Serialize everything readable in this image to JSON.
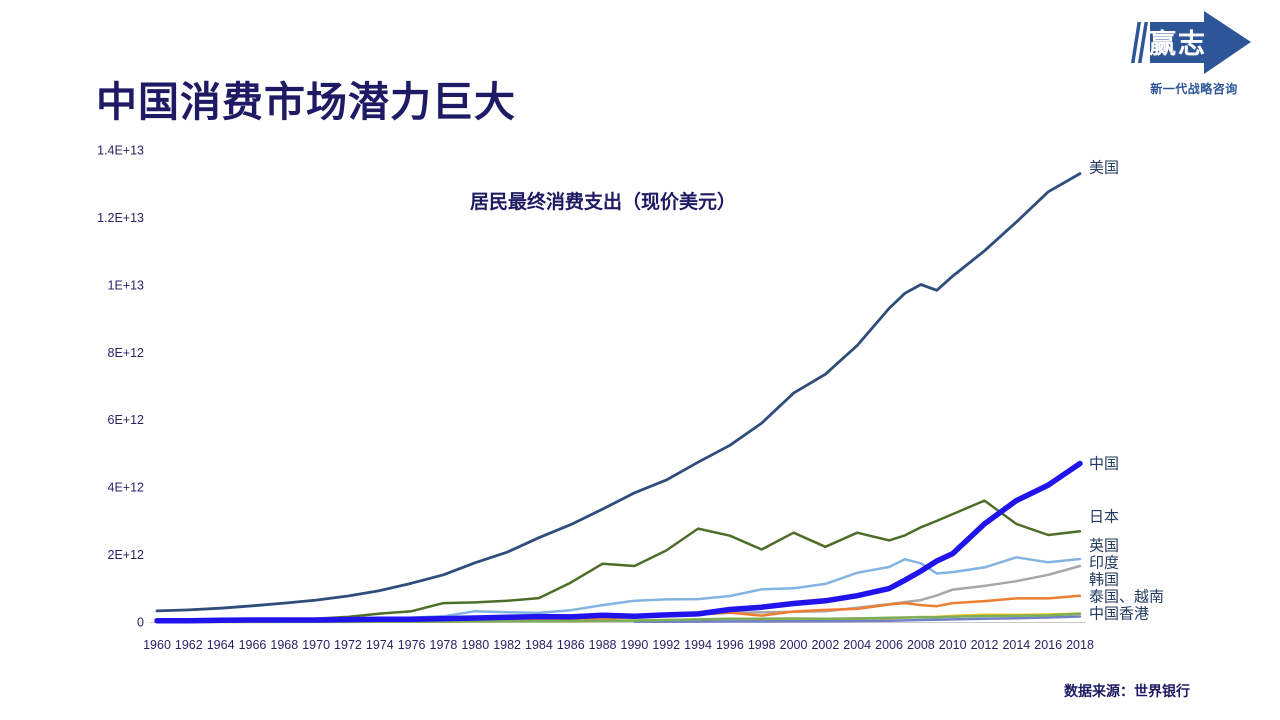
{
  "page": {
    "title": "中国消费市场潜力巨大",
    "source_note": "数据来源：世界银行"
  },
  "logo": {
    "name": "赢志",
    "tagline": "新一代战略咨询",
    "color": "#2C5697"
  },
  "chart_data": {
    "type": "line",
    "title": "居民最终消费支出（现价美元）",
    "value_unit": "current US$, values stored in units of 1E+12",
    "x_range": [
      1960,
      2018
    ],
    "ylim_e12": [
      0,
      14
    ],
    "grid": "off",
    "legend": "series-end-labels-right",
    "y_ticks": [
      {
        "label": "0",
        "value_e12": 0
      },
      {
        "label": "2E+12",
        "value_e12": 2
      },
      {
        "label": "4E+12",
        "value_e12": 4
      },
      {
        "label": "6E+12",
        "value_e12": 6
      },
      {
        "label": "8E+12",
        "value_e12": 8
      },
      {
        "label": "1E+13",
        "value_e12": 10
      },
      {
        "label": "1.2E+13",
        "value_e12": 12
      },
      {
        "label": "1.4E+13",
        "value_e12": 14
      }
    ],
    "x_label_years": [
      1960,
      1962,
      1964,
      1966,
      1968,
      1970,
      1972,
      1974,
      1976,
      1978,
      1980,
      1982,
      1984,
      1986,
      1988,
      1990,
      1992,
      1994,
      1996,
      1998,
      2000,
      2002,
      2004,
      2006,
      2008,
      2010,
      2012,
      2014,
      2016,
      2018
    ],
    "years": [
      1960,
      1962,
      1964,
      1966,
      1968,
      1970,
      1972,
      1974,
      1976,
      1978,
      1980,
      1982,
      1984,
      1986,
      1988,
      1990,
      1992,
      1994,
      1996,
      1998,
      2000,
      2002,
      2004,
      2006,
      2007,
      2008,
      2009,
      2010,
      2012,
      2014,
      2016,
      2018
    ],
    "series": [
      {
        "id": "usa",
        "name": "美国",
        "label": "美国",
        "label_dy": -6,
        "color": "#2E4D7B",
        "width": 2.8,
        "values_e12": [
          0.33,
          0.36,
          0.41,
          0.48,
          0.56,
          0.65,
          0.77,
          0.93,
          1.15,
          1.4,
          1.76,
          2.07,
          2.5,
          2.89,
          3.35,
          3.83,
          4.21,
          4.74,
          5.24,
          5.9,
          6.79,
          7.35,
          8.2,
          9.3,
          9.75,
          10.01,
          9.84,
          10.26,
          11.01,
          11.86,
          12.76,
          13.3
        ]
      },
      {
        "id": "uk",
        "name": "英国",
        "label": "英国",
        "label_dy": 0,
        "color": "#82B3E2",
        "width": 2.5,
        "values_e12": [
          0.05,
          0.05,
          0.06,
          0.07,
          0.07,
          0.08,
          0.1,
          0.12,
          0.13,
          0.17,
          0.32,
          0.29,
          0.27,
          0.35,
          0.5,
          0.63,
          0.67,
          0.68,
          0.77,
          0.97,
          1.0,
          1.13,
          1.46,
          1.63,
          1.86,
          1.74,
          1.44,
          1.48,
          1.62,
          1.92,
          1.77,
          1.87
        ]
      },
      {
        "id": "india",
        "name": "印度",
        "label": "印度",
        "label_dy": 0,
        "color": "#A7A7A7",
        "width": 2.5,
        "values_e12": [
          0.03,
          0.03,
          0.04,
          0.04,
          0.04,
          0.05,
          0.05,
          0.07,
          0.08,
          0.1,
          0.14,
          0.14,
          0.14,
          0.17,
          0.19,
          0.21,
          0.19,
          0.23,
          0.27,
          0.29,
          0.3,
          0.32,
          0.42,
          0.53,
          0.59,
          0.65,
          0.79,
          0.96,
          1.07,
          1.21,
          1.4,
          1.66
        ]
      },
      {
        "id": "korea",
        "name": "韩国",
        "label": "韩国",
        "label_dy": 0,
        "color": "#EE7D31",
        "width": 2.5,
        "values_e12": [
          0.003,
          0.004,
          0.005,
          0.007,
          0.009,
          0.012,
          0.014,
          0.021,
          0.03,
          0.048,
          0.043,
          0.051,
          0.058,
          0.068,
          0.098,
          0.139,
          0.168,
          0.22,
          0.28,
          0.19,
          0.31,
          0.36,
          0.39,
          0.52,
          0.56,
          0.5,
          0.47,
          0.56,
          0.62,
          0.7,
          0.7,
          0.78
        ]
      },
      {
        "id": "thailand",
        "name": "泰国",
        "label": "泰国、越南",
        "label_dy": 0,
        "color": "#F0C020",
        "width": 2.5,
        "values_e12": [
          0.002,
          0.002,
          0.003,
          0.004,
          0.005,
          0.005,
          0.006,
          0.009,
          0.012,
          0.016,
          0.021,
          0.024,
          0.026,
          0.026,
          0.035,
          0.048,
          0.06,
          0.075,
          0.099,
          0.06,
          0.069,
          0.072,
          0.094,
          0.113,
          0.13,
          0.148,
          0.152,
          0.182,
          0.215,
          0.212,
          0.222,
          0.252
        ]
      },
      {
        "id": "vietnam",
        "name": "越南",
        "label": null,
        "label_dy": 0,
        "color": "#7081C8",
        "width": 2.5,
        "values_e12": [
          null,
          null,
          null,
          null,
          null,
          null,
          null,
          null,
          null,
          null,
          null,
          null,
          null,
          null,
          null,
          0.005,
          0.008,
          0.012,
          0.018,
          0.019,
          0.02,
          0.023,
          0.029,
          0.038,
          0.047,
          0.06,
          0.065,
          0.077,
          0.097,
          0.114,
          0.132,
          0.162
        ]
      },
      {
        "id": "hongkong",
        "name": "中国香港",
        "label": "中国香港",
        "label_dy": 0,
        "color": "#7CAE58",
        "width": 2.5,
        "values_e12": [
          0.001,
          0.001,
          0.002,
          0.002,
          0.002,
          0.003,
          0.004,
          0.006,
          0.008,
          0.011,
          0.017,
          0.021,
          0.022,
          0.026,
          0.036,
          0.043,
          0.06,
          0.077,
          0.099,
          0.098,
          0.103,
          0.096,
          0.107,
          0.124,
          0.134,
          0.142,
          0.139,
          0.154,
          0.177,
          0.184,
          0.196,
          0.245
        ]
      },
      {
        "id": "japan",
        "name": "日本",
        "label": "日本",
        "label_dy": -15,
        "color": "#4D6E28",
        "width": 2.5,
        "values_e12": [
          0.02,
          0.03,
          0.04,
          0.06,
          0.08,
          0.1,
          0.15,
          0.25,
          0.32,
          0.56,
          0.58,
          0.63,
          0.71,
          1.17,
          1.73,
          1.66,
          2.12,
          2.77,
          2.56,
          2.15,
          2.65,
          2.23,
          2.65,
          2.42,
          2.57,
          2.81,
          3.0,
          3.2,
          3.6,
          2.91,
          2.58,
          2.69
        ]
      },
      {
        "id": "china",
        "name": "中国",
        "label": "中国",
        "label_dy": 0,
        "color": "#2013EC",
        "width": 5.5,
        "values_e12": [
          0.04,
          0.04,
          0.05,
          0.06,
          0.06,
          0.06,
          0.07,
          0.08,
          0.08,
          0.1,
          0.12,
          0.14,
          0.16,
          0.15,
          0.2,
          0.17,
          0.21,
          0.24,
          0.37,
          0.44,
          0.55,
          0.63,
          0.78,
          0.99,
          1.24,
          1.51,
          1.81,
          2.03,
          2.91,
          3.6,
          4.06,
          4.7
        ]
      }
    ]
  }
}
